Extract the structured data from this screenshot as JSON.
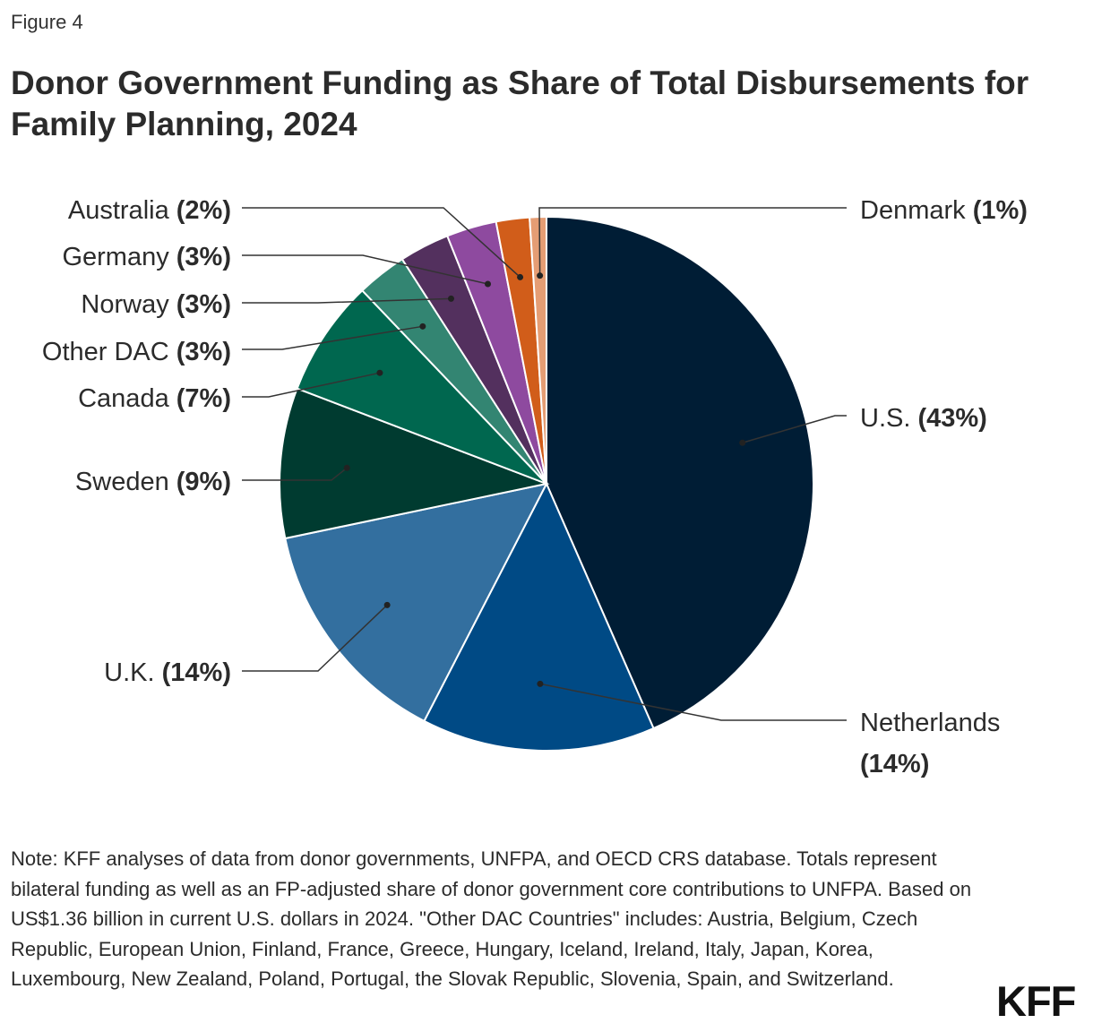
{
  "figure_label": "Figure 4",
  "chart_data": {
    "type": "pie",
    "title": "Donor Government Funding as Share of Total Disbursements for Family Planning, 2024",
    "slices": [
      {
        "label": "U.S.",
        "value": 43,
        "display": "(43%)",
        "color": "#001d35"
      },
      {
        "label": "Netherlands",
        "value": 14,
        "display": "(14%)",
        "color": "#004a85"
      },
      {
        "label": "U.K.",
        "value": 14,
        "display": "(14%)",
        "color": "#336f9f"
      },
      {
        "label": "Sweden",
        "value": 9,
        "display": "(9%)",
        "color": "#003b30"
      },
      {
        "label": "Canada",
        "value": 7,
        "display": "(7%)",
        "color": "#00674f"
      },
      {
        "label": "Other DAC",
        "value": 3,
        "display": "(3%)",
        "color": "#338572"
      },
      {
        "label": "Norway",
        "value": 3,
        "display": "(3%)",
        "color": "#53305e"
      },
      {
        "label": "Germany",
        "value": 3,
        "display": "(3%)",
        "color": "#8e4a9f"
      },
      {
        "label": "Australia",
        "value": 2,
        "display": "(2%)",
        "color": "#d15d1a"
      },
      {
        "label": "Denmark",
        "value": 1,
        "display": "(1%)",
        "color": "#e59d74"
      }
    ]
  },
  "note": "Note: KFF analyses of data from donor governments, UNFPA, and OECD CRS database. Totals represent bilateral funding as well as an FP-adjusted share of donor government core contributions to UNFPA. Based on US$1.36 billion in current U.S. dollars in 2024. \"Other DAC Countries\" includes: Austria, Belgium, Czech Republic, European Union, Finland, France, Greece, Hungary, Iceland, Ireland, Italy, Japan, Korea, Luxembourg, New Zealand, Poland, Portugal, the Slovak Republic, Slovenia, Spain, and Switzerland.",
  "brand": "KFF"
}
